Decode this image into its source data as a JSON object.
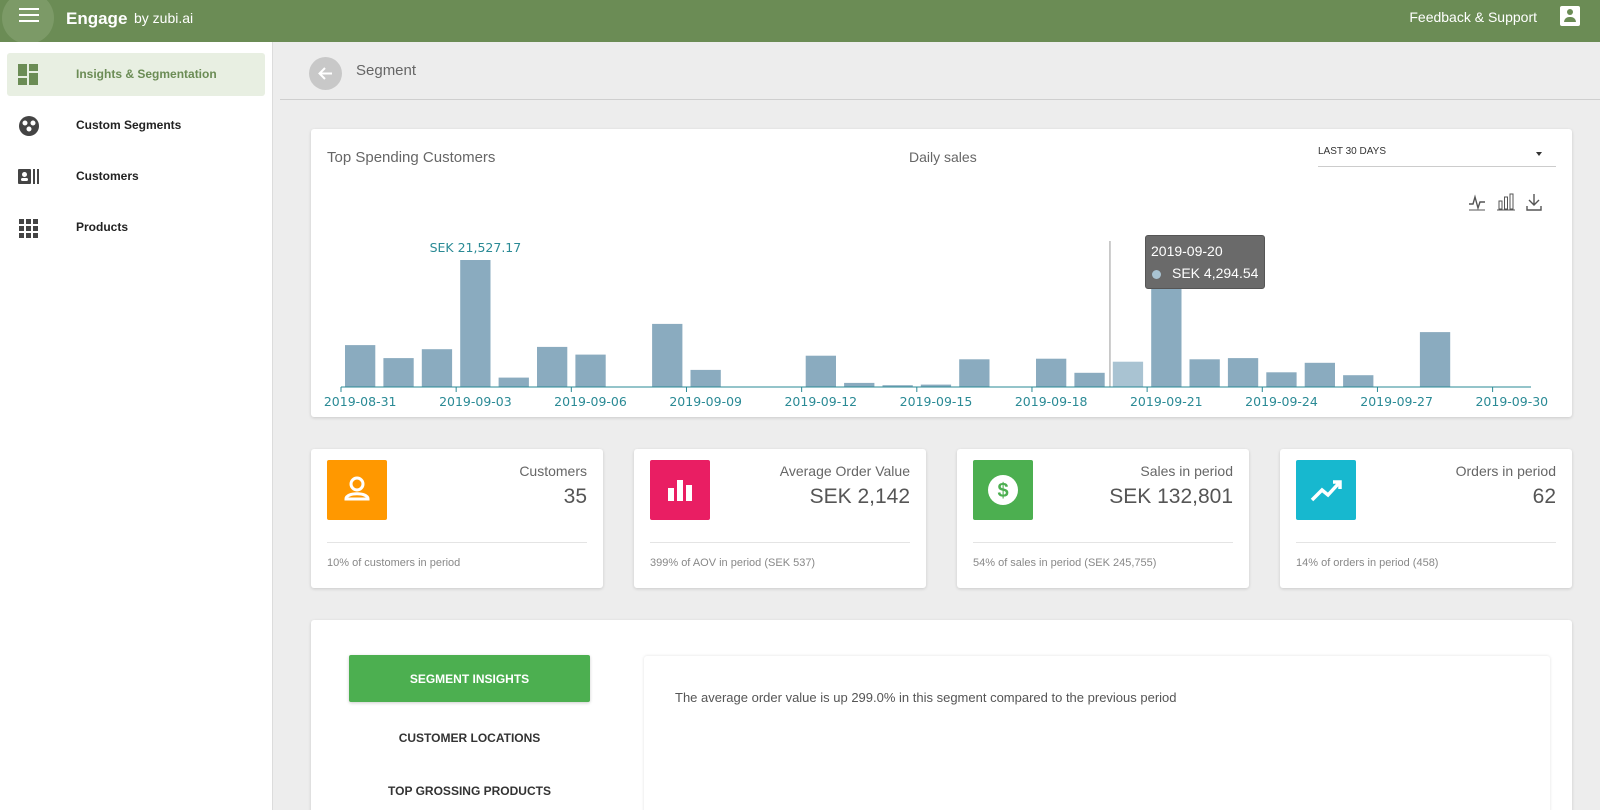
{
  "topbar": {
    "brand": "Engage",
    "brand_sub": "by zubi.ai",
    "support_label": "Feedback & Support",
    "menu_icon": "hamburger-menu-icon",
    "account_icon": "account-box-icon",
    "color": "#6b8c55"
  },
  "sidebar": {
    "items": [
      {
        "label": "Insights & Segmentation",
        "icon": "dashboard-icon",
        "active": true
      },
      {
        "label": "Custom Segments",
        "icon": "group-segment-icon",
        "active": false
      },
      {
        "label": "Customers",
        "icon": "contacts-list-icon",
        "active": false
      },
      {
        "label": "Products",
        "icon": "apps-grid-icon",
        "active": false
      }
    ]
  },
  "page": {
    "title": "Segment",
    "back_icon": "arrow-back-icon"
  },
  "chart_card": {
    "title": "Top Spending Customers",
    "subtitle": "Daily sales",
    "period": "LAST 30 DAYS",
    "tools": [
      "line-chart-icon",
      "bar-chart-icon",
      "download-icon"
    ],
    "tooltip": {
      "date": "2019-09-20",
      "value": "SEK 4,294.54"
    },
    "max_label": "SEK 21,527.17"
  },
  "chart_data": {
    "type": "bar",
    "x": [
      "2019-08-31",
      "2019-09-01",
      "2019-09-02",
      "2019-09-03",
      "2019-09-04",
      "2019-09-05",
      "2019-09-06",
      "2019-09-07",
      "2019-09-08",
      "2019-09-09",
      "2019-09-10",
      "2019-09-11",
      "2019-09-12",
      "2019-09-13",
      "2019-09-14",
      "2019-09-15",
      "2019-09-16",
      "2019-09-17",
      "2019-09-18",
      "2019-09-19",
      "2019-09-20",
      "2019-09-21",
      "2019-09-22",
      "2019-09-23",
      "2019-09-24",
      "2019-09-25",
      "2019-09-26",
      "2019-09-27",
      "2019-09-28",
      "2019-09-29",
      "2019-09-30"
    ],
    "values": [
      7100,
      4900,
      6400,
      21527.17,
      1600,
      6800,
      5500,
      0,
      10700,
      2900,
      0,
      0,
      5300,
      700,
      300,
      400,
      4700,
      0,
      4800,
      2400,
      4294.54,
      16700,
      4700,
      4900,
      2500,
      4100,
      2000,
      0,
      9300,
      0,
      0
    ],
    "tick_labels": [
      "2019-08-31",
      "2019-09-03",
      "2019-09-06",
      "2019-09-09",
      "2019-09-12",
      "2019-09-15",
      "2019-09-18",
      "2019-09-21",
      "2019-09-24",
      "2019-09-27",
      "2019-09-30"
    ],
    "annotation": "SEK 21,527.17",
    "highlight": "2019-09-20",
    "ylim": [
      0,
      23000
    ],
    "bar_color": "#8aabbf",
    "highlight_color": "#a9c3d2",
    "axis_color": "#2a8a95"
  },
  "kpis": [
    {
      "title": "Customers",
      "value": "35",
      "foot": "10% of customers in period",
      "icon": "person-icon",
      "color": "#ff9800"
    },
    {
      "title": "Average Order Value",
      "value": "SEK 2,142",
      "foot": "399% of AOV in period (SEK 537)",
      "icon": "bar-chart-icon",
      "color": "#e91e63"
    },
    {
      "title": "Sales in period",
      "value": "SEK 132,801",
      "foot": "54% of sales in period (SEK 245,755)",
      "icon": "dollar-icon",
      "color": "#4caf50"
    },
    {
      "title": "Orders in period",
      "value": "62",
      "foot": "14% of orders in period (458)",
      "icon": "trending-up-icon",
      "color": "#17b8cf"
    }
  ],
  "segment": {
    "buttons": [
      "SEGMENT INSIGHTS",
      "CUSTOMER LOCATIONS",
      "TOP GROSSING PRODUCTS"
    ],
    "insight": "The average order value is up 299.0% in this segment compared to the previous period"
  }
}
